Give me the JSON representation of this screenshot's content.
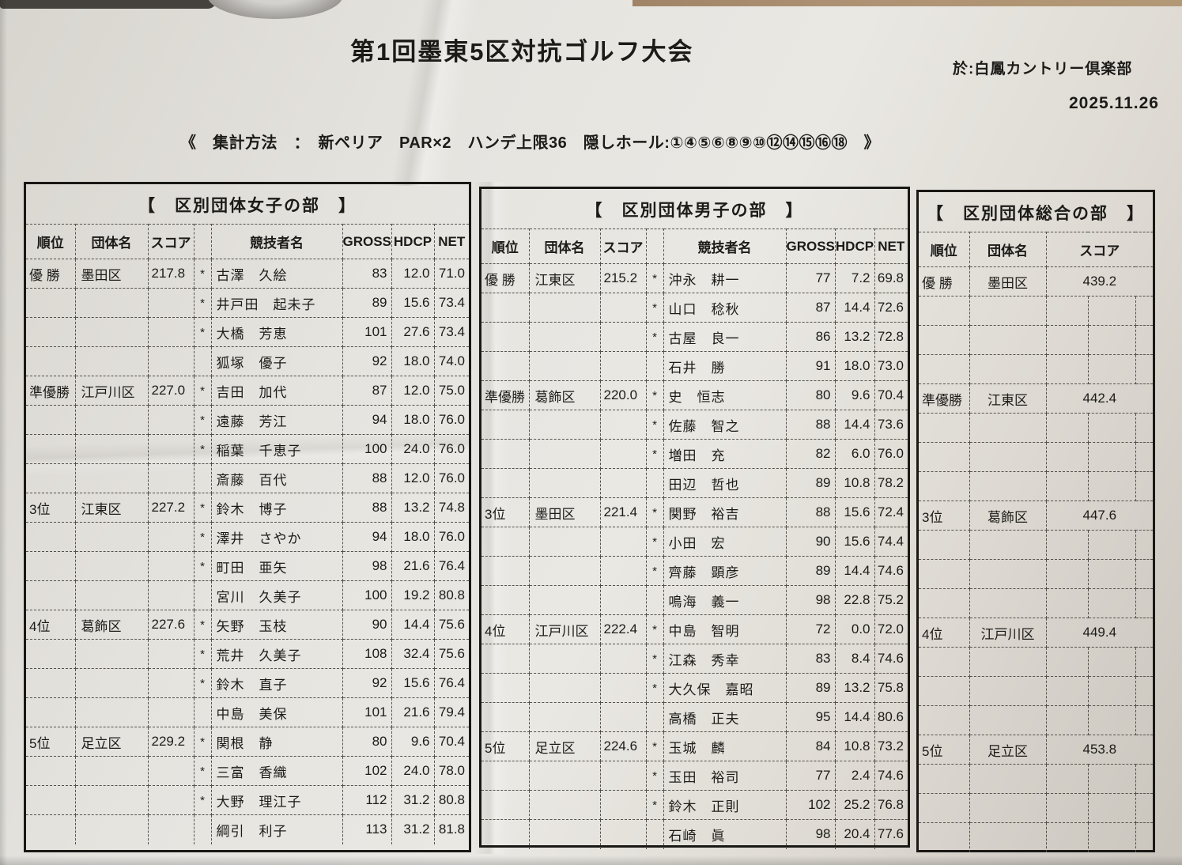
{
  "header": {
    "title": "第1回墨東5区対抗ゴルフ大会",
    "venue": "於:白鳳カントリー倶楽部",
    "date": "2025.11.26",
    "method": "《　集計方法　：　新ペリア　PAR×2　ハンデ上限36　隠しホール:①④⑤⑥⑧⑨⑩⑫⑭⑮⑯⑱　》"
  },
  "tables": [
    {
      "id": "women",
      "title": "【　区別団体女子の部　】",
      "type": "detail",
      "headers": [
        "順位",
        "団体名",
        "スコア",
        "",
        "競技者名",
        "GROSS",
        "HDCP",
        "NET"
      ],
      "groups": [
        {
          "rank": "優 勝",
          "team": "墨田区",
          "score": "217.8",
          "players": [
            {
              "counted": "*",
              "name": "古澤　久絵",
              "gross": "83",
              "hdcp": "12.0",
              "net": "71.0"
            },
            {
              "counted": "*",
              "name": "井戸田　起未子",
              "gross": "89",
              "hdcp": "15.6",
              "net": "73.4"
            },
            {
              "counted": "*",
              "name": "大橋　芳恵",
              "gross": "101",
              "hdcp": "27.6",
              "net": "73.4"
            },
            {
              "counted": "",
              "name": "狐塚　優子",
              "gross": "92",
              "hdcp": "18.0",
              "net": "74.0"
            }
          ]
        },
        {
          "rank": "準優勝",
          "team": "江戸川区",
          "score": "227.0",
          "players": [
            {
              "counted": "*",
              "name": "吉田　加代",
              "gross": "87",
              "hdcp": "12.0",
              "net": "75.0"
            },
            {
              "counted": "*",
              "name": "遠藤　芳江",
              "gross": "94",
              "hdcp": "18.0",
              "net": "76.0"
            },
            {
              "counted": "*",
              "name": "稲葉　千恵子",
              "gross": "100",
              "hdcp": "24.0",
              "net": "76.0"
            },
            {
              "counted": "",
              "name": "斎藤　百代",
              "gross": "88",
              "hdcp": "12.0",
              "net": "76.0"
            }
          ]
        },
        {
          "rank": "3位",
          "team": "江東区",
          "score": "227.2",
          "players": [
            {
              "counted": "*",
              "name": "鈴木　博子",
              "gross": "88",
              "hdcp": "13.2",
              "net": "74.8"
            },
            {
              "counted": "*",
              "name": "澤井　さやか",
              "gross": "94",
              "hdcp": "18.0",
              "net": "76.0"
            },
            {
              "counted": "*",
              "name": "町田　亜矢",
              "gross": "98",
              "hdcp": "21.6",
              "net": "76.4"
            },
            {
              "counted": "",
              "name": "宮川　久美子",
              "gross": "100",
              "hdcp": "19.2",
              "net": "80.8"
            }
          ]
        },
        {
          "rank": "4位",
          "team": "葛飾区",
          "score": "227.6",
          "players": [
            {
              "counted": "*",
              "name": "矢野　玉枝",
              "gross": "90",
              "hdcp": "14.4",
              "net": "75.6"
            },
            {
              "counted": "*",
              "name": "荒井　久美子",
              "gross": "108",
              "hdcp": "32.4",
              "net": "75.6"
            },
            {
              "counted": "*",
              "name": "鈴木　直子",
              "gross": "92",
              "hdcp": "15.6",
              "net": "76.4"
            },
            {
              "counted": "",
              "name": "中島　美保",
              "gross": "101",
              "hdcp": "21.6",
              "net": "79.4"
            }
          ]
        },
        {
          "rank": "5位",
          "team": "足立区",
          "score": "229.2",
          "players": [
            {
              "counted": "*",
              "name": "関根　静",
              "gross": "80",
              "hdcp": "9.6",
              "net": "70.4"
            },
            {
              "counted": "*",
              "name": "三富　香織",
              "gross": "102",
              "hdcp": "24.0",
              "net": "78.0"
            },
            {
              "counted": "*",
              "name": "大野　理江子",
              "gross": "112",
              "hdcp": "31.2",
              "net": "80.8"
            },
            {
              "counted": "",
              "name": "綱引　利子",
              "gross": "113",
              "hdcp": "31.2",
              "net": "81.8"
            }
          ]
        }
      ]
    },
    {
      "id": "men",
      "title": "【　区別団体男子の部　】",
      "type": "detail",
      "headers": [
        "順位",
        "団体名",
        "スコア",
        "",
        "競技者名",
        "GROSS",
        "HDCP",
        "NET"
      ],
      "groups": [
        {
          "rank": "優 勝",
          "team": "江東区",
          "score": "215.2",
          "players": [
            {
              "counted": "*",
              "name": "沖永　耕一",
              "gross": "77",
              "hdcp": "7.2",
              "net": "69.8"
            },
            {
              "counted": "*",
              "name": "山口　稔秋",
              "gross": "87",
              "hdcp": "14.4",
              "net": "72.6"
            },
            {
              "counted": "*",
              "name": "古屋　良一",
              "gross": "86",
              "hdcp": "13.2",
              "net": "72.8"
            },
            {
              "counted": "",
              "name": "石井　勝",
              "gross": "91",
              "hdcp": "18.0",
              "net": "73.0"
            }
          ]
        },
        {
          "rank": "準優勝",
          "team": "葛飾区",
          "score": "220.0",
          "players": [
            {
              "counted": "*",
              "name": "史　恒志",
              "gross": "80",
              "hdcp": "9.6",
              "net": "70.4"
            },
            {
              "counted": "*",
              "name": "佐藤　智之",
              "gross": "88",
              "hdcp": "14.4",
              "net": "73.6"
            },
            {
              "counted": "*",
              "name": "増田　充",
              "gross": "82",
              "hdcp": "6.0",
              "net": "76.0"
            },
            {
              "counted": "",
              "name": "田辺　哲也",
              "gross": "89",
              "hdcp": "10.8",
              "net": "78.2"
            }
          ]
        },
        {
          "rank": "3位",
          "team": "墨田区",
          "score": "221.4",
          "players": [
            {
              "counted": "*",
              "name": "関野　裕吉",
              "gross": "88",
              "hdcp": "15.6",
              "net": "72.4"
            },
            {
              "counted": "*",
              "name": "小田　宏",
              "gross": "90",
              "hdcp": "15.6",
              "net": "74.4"
            },
            {
              "counted": "*",
              "name": "齊藤　顕彦",
              "gross": "89",
              "hdcp": "14.4",
              "net": "74.6"
            },
            {
              "counted": "",
              "name": "鳴海　義一",
              "gross": "98",
              "hdcp": "22.8",
              "net": "75.2"
            }
          ]
        },
        {
          "rank": "4位",
          "team": "江戸川区",
          "score": "222.4",
          "players": [
            {
              "counted": "*",
              "name": "中島　智明",
              "gross": "72",
              "hdcp": "0.0",
              "net": "72.0"
            },
            {
              "counted": "*",
              "name": "江森　秀幸",
              "gross": "83",
              "hdcp": "8.4",
              "net": "74.6"
            },
            {
              "counted": "*",
              "name": "大久保　嘉昭",
              "gross": "89",
              "hdcp": "13.2",
              "net": "75.8"
            },
            {
              "counted": "",
              "name": "高橋　正夫",
              "gross": "95",
              "hdcp": "14.4",
              "net": "80.6"
            }
          ]
        },
        {
          "rank": "5位",
          "team": "足立区",
          "score": "224.6",
          "players": [
            {
              "counted": "*",
              "name": "玉城　麟",
              "gross": "84",
              "hdcp": "10.8",
              "net": "73.2"
            },
            {
              "counted": "*",
              "name": "玉田　裕司",
              "gross": "77",
              "hdcp": "2.4",
              "net": "74.6"
            },
            {
              "counted": "*",
              "name": "鈴木　正則",
              "gross": "102",
              "hdcp": "25.2",
              "net": "76.8"
            },
            {
              "counted": "",
              "name": "石崎　眞",
              "gross": "98",
              "hdcp": "20.4",
              "net": "77.6"
            }
          ]
        }
      ]
    },
    {
      "id": "overall",
      "title": "【　区別団体総合の部　】",
      "type": "summary",
      "headers": [
        "順位",
        "団体名",
        "スコア"
      ],
      "rows": [
        {
          "rank": "優 勝",
          "team": "墨田区",
          "score": "439.2"
        },
        {
          "rank": "準優勝",
          "team": "江東区",
          "score": "442.4"
        },
        {
          "rank": "3位",
          "team": "葛飾区",
          "score": "447.6"
        },
        {
          "rank": "4位",
          "team": "江戸川区",
          "score": "449.4"
        },
        {
          "rank": "5位",
          "team": "足立区",
          "score": "453.8"
        }
      ]
    }
  ]
}
